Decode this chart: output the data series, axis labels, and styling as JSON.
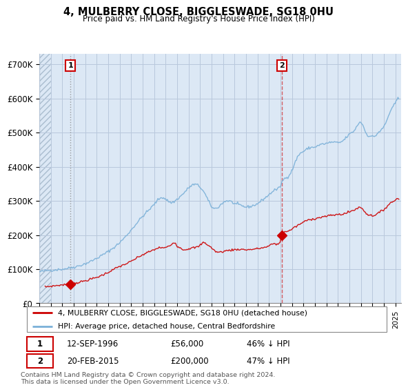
{
  "title": "4, MULBERRY CLOSE, BIGGLESWADE, SG18 0HU",
  "subtitle": "Price paid vs. HM Land Registry's House Price Index (HPI)",
  "ylim": [
    0,
    730000
  ],
  "yticks": [
    0,
    100000,
    200000,
    300000,
    400000,
    500000,
    600000,
    700000
  ],
  "ytick_labels": [
    "£0",
    "£100K",
    "£200K",
    "£300K",
    "£400K",
    "£500K",
    "£600K",
    "£700K"
  ],
  "xlim_start": 1994.0,
  "xlim_end": 2025.5,
  "annotation1": {
    "x": 1996.7,
    "label": "1",
    "date": "12-SEP-1996",
    "price": "£56,000",
    "pct": "46% ↓ HPI"
  },
  "annotation2": {
    "x": 2015.12,
    "label": "2",
    "date": "20-FEB-2015",
    "price": "£200,000",
    "pct": "47% ↓ HPI"
  },
  "legend_red": "4, MULBERRY CLOSE, BIGGLESWADE, SG18 0HU (detached house)",
  "legend_blue": "HPI: Average price, detached house, Central Bedfordshire",
  "footer": "Contains HM Land Registry data © Crown copyright and database right 2024.\nThis data is licensed under the Open Government Licence v3.0.",
  "red_color": "#cc0000",
  "blue_color": "#7ab0d8",
  "bg_color": "#dce8f5",
  "hatch_color": "#c8d4e5",
  "grid_color": "#b8c8dc",
  "sale1_x": 1996.7,
  "sale1_y": 56000,
  "sale2_x": 2015.12,
  "sale2_y": 200000
}
